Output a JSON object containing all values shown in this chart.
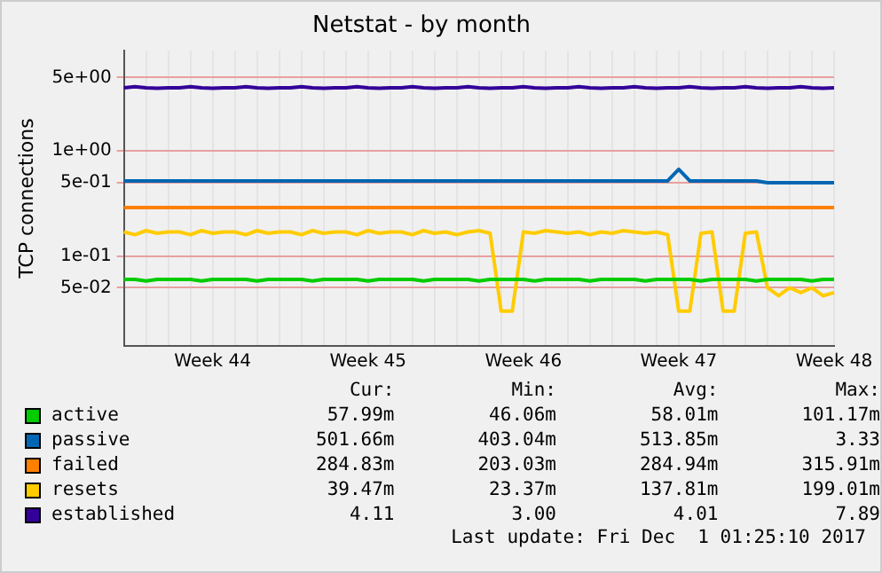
{
  "chart_data": {
    "type": "line",
    "title": "Netstat - by month",
    "ylabel": "TCP connections",
    "log": true,
    "grid": true,
    "legend": "bottom left",
    "marker": "none",
    "line_style": "solid",
    "ylim": [
      0.014,
      9
    ],
    "yticks": [
      {
        "value": 5,
        "label": "5e+00"
      },
      {
        "value": 1,
        "label": "1e+00"
      },
      {
        "value": 0.5,
        "label": "5e-01"
      },
      {
        "value": 0.1,
        "label": "1e-01"
      },
      {
        "value": 0.05,
        "label": "5e-02"
      }
    ],
    "categories": [
      null,
      null,
      null,
      null,
      null,
      null,
      null,
      null,
      "Week 44",
      null,
      null,
      null,
      null,
      null,
      null,
      null,
      null,
      null,
      null,
      null,
      null,
      null,
      "Week 45",
      null,
      null,
      null,
      null,
      null,
      null,
      null,
      null,
      null,
      null,
      null,
      null,
      null,
      "Week 46",
      null,
      null,
      null,
      null,
      null,
      null,
      null,
      null,
      null,
      null,
      null,
      null,
      null,
      "Week 47",
      null,
      null,
      null,
      null,
      null,
      null,
      null,
      null,
      null,
      null,
      null,
      null,
      null,
      "Week 48"
    ],
    "series": [
      {
        "name": "active",
        "color": "#00cc00",
        "values": [
          0.06,
          0.06,
          0.058,
          0.06,
          0.06,
          0.06,
          0.06,
          0.058,
          0.06,
          0.06,
          0.06,
          0.06,
          0.058,
          0.06,
          0.06,
          0.06,
          0.06,
          0.058,
          0.06,
          0.06,
          0.06,
          0.06,
          0.058,
          0.06,
          0.06,
          0.06,
          0.06,
          0.058,
          0.06,
          0.06,
          0.06,
          0.06,
          0.058,
          0.06,
          0.06,
          0.06,
          0.06,
          0.058,
          0.06,
          0.06,
          0.06,
          0.06,
          0.058,
          0.06,
          0.06,
          0.06,
          0.06,
          0.058,
          0.06,
          0.06,
          0.06,
          0.06,
          0.058,
          0.06,
          0.06,
          0.06,
          0.06,
          0.058,
          0.06,
          0.06,
          0.06,
          0.06,
          0.058,
          0.06,
          0.06
        ]
      },
      {
        "name": "passive",
        "color": "#0066b3",
        "values": [
          0.52,
          0.52,
          0.52,
          0.52,
          0.52,
          0.52,
          0.52,
          0.52,
          0.52,
          0.52,
          0.52,
          0.52,
          0.52,
          0.52,
          0.52,
          0.52,
          0.52,
          0.52,
          0.52,
          0.52,
          0.52,
          0.52,
          0.52,
          0.52,
          0.52,
          0.52,
          0.52,
          0.52,
          0.52,
          0.52,
          0.52,
          0.52,
          0.52,
          0.52,
          0.52,
          0.52,
          0.52,
          0.52,
          0.52,
          0.52,
          0.52,
          0.52,
          0.52,
          0.52,
          0.52,
          0.52,
          0.52,
          0.52,
          0.52,
          0.52,
          0.67,
          0.52,
          0.52,
          0.52,
          0.52,
          0.52,
          0.52,
          0.52,
          0.5,
          0.5,
          0.5,
          0.5,
          0.5,
          0.5,
          0.5
        ]
      },
      {
        "name": "failed",
        "color": "#ff8000",
        "values": [
          0.29,
          0.29,
          0.29,
          0.29,
          0.29,
          0.29,
          0.29,
          0.29,
          0.29,
          0.29,
          0.29,
          0.29,
          0.29,
          0.29,
          0.29,
          0.29,
          0.29,
          0.29,
          0.29,
          0.29,
          0.29,
          0.29,
          0.29,
          0.29,
          0.29,
          0.29,
          0.29,
          0.29,
          0.29,
          0.29,
          0.29,
          0.29,
          0.29,
          0.29,
          0.29,
          0.29,
          0.29,
          0.29,
          0.29,
          0.29,
          0.29,
          0.29,
          0.29,
          0.29,
          0.29,
          0.29,
          0.29,
          0.29,
          0.29,
          0.29,
          0.29,
          0.29,
          0.29,
          0.29,
          0.29,
          0.29,
          0.29,
          0.29,
          0.29,
          0.29,
          0.29,
          0.29,
          0.29,
          0.29,
          0.29
        ]
      },
      {
        "name": "resets",
        "color": "#ffcc00",
        "values": [
          0.17,
          0.16,
          0.175,
          0.165,
          0.17,
          0.17,
          0.16,
          0.175,
          0.165,
          0.17,
          0.17,
          0.16,
          0.175,
          0.165,
          0.17,
          0.17,
          0.16,
          0.175,
          0.165,
          0.17,
          0.17,
          0.16,
          0.175,
          0.165,
          0.17,
          0.17,
          0.16,
          0.175,
          0.165,
          0.17,
          0.16,
          0.17,
          0.175,
          0.165,
          0.03,
          0.03,
          0.17,
          0.165,
          0.175,
          0.17,
          0.165,
          0.17,
          0.16,
          0.17,
          0.165,
          0.175,
          0.17,
          0.165,
          0.17,
          0.16,
          0.03,
          0.03,
          0.165,
          0.17,
          0.03,
          0.03,
          0.165,
          0.17,
          0.05,
          0.042,
          0.05,
          0.045,
          0.05,
          0.042,
          0.045
        ]
      },
      {
        "name": "established",
        "color": "#330099",
        "values": [
          4.0,
          4.1,
          4.0,
          3.95,
          4.0,
          4.0,
          4.1,
          4.0,
          3.95,
          4.0,
          4.0,
          4.1,
          4.0,
          3.95,
          4.0,
          4.0,
          4.1,
          4.0,
          3.95,
          4.0,
          4.0,
          4.1,
          4.0,
          3.95,
          4.0,
          4.0,
          4.1,
          4.0,
          3.95,
          4.0,
          4.0,
          4.1,
          4.0,
          3.95,
          4.0,
          4.0,
          4.1,
          4.0,
          3.95,
          4.0,
          4.0,
          4.1,
          4.0,
          3.95,
          4.0,
          4.0,
          4.1,
          4.0,
          3.95,
          4.0,
          4.0,
          4.1,
          4.0,
          3.95,
          4.0,
          4.0,
          4.1,
          4.0,
          3.95,
          4.0,
          4.0,
          4.1,
          4.0,
          3.95,
          4.0
        ]
      }
    ],
    "annotations": [
      "Cur:",
      "Min:",
      "Avg:",
      "Max:",
      "57.99m",
      "46.06m",
      "58.01m",
      "101.17m",
      "501.66m",
      "403.04m",
      "513.85m",
      "3.33",
      "284.83m",
      "203.03m",
      "284.94m",
      "315.91m",
      "39.47m",
      "23.37m",
      "137.81m",
      "199.01m",
      "4.11",
      "3.00",
      "4.01",
      "7.89",
      "Last update: Fri Dec  1 01:25:10 2017"
    ]
  }
}
